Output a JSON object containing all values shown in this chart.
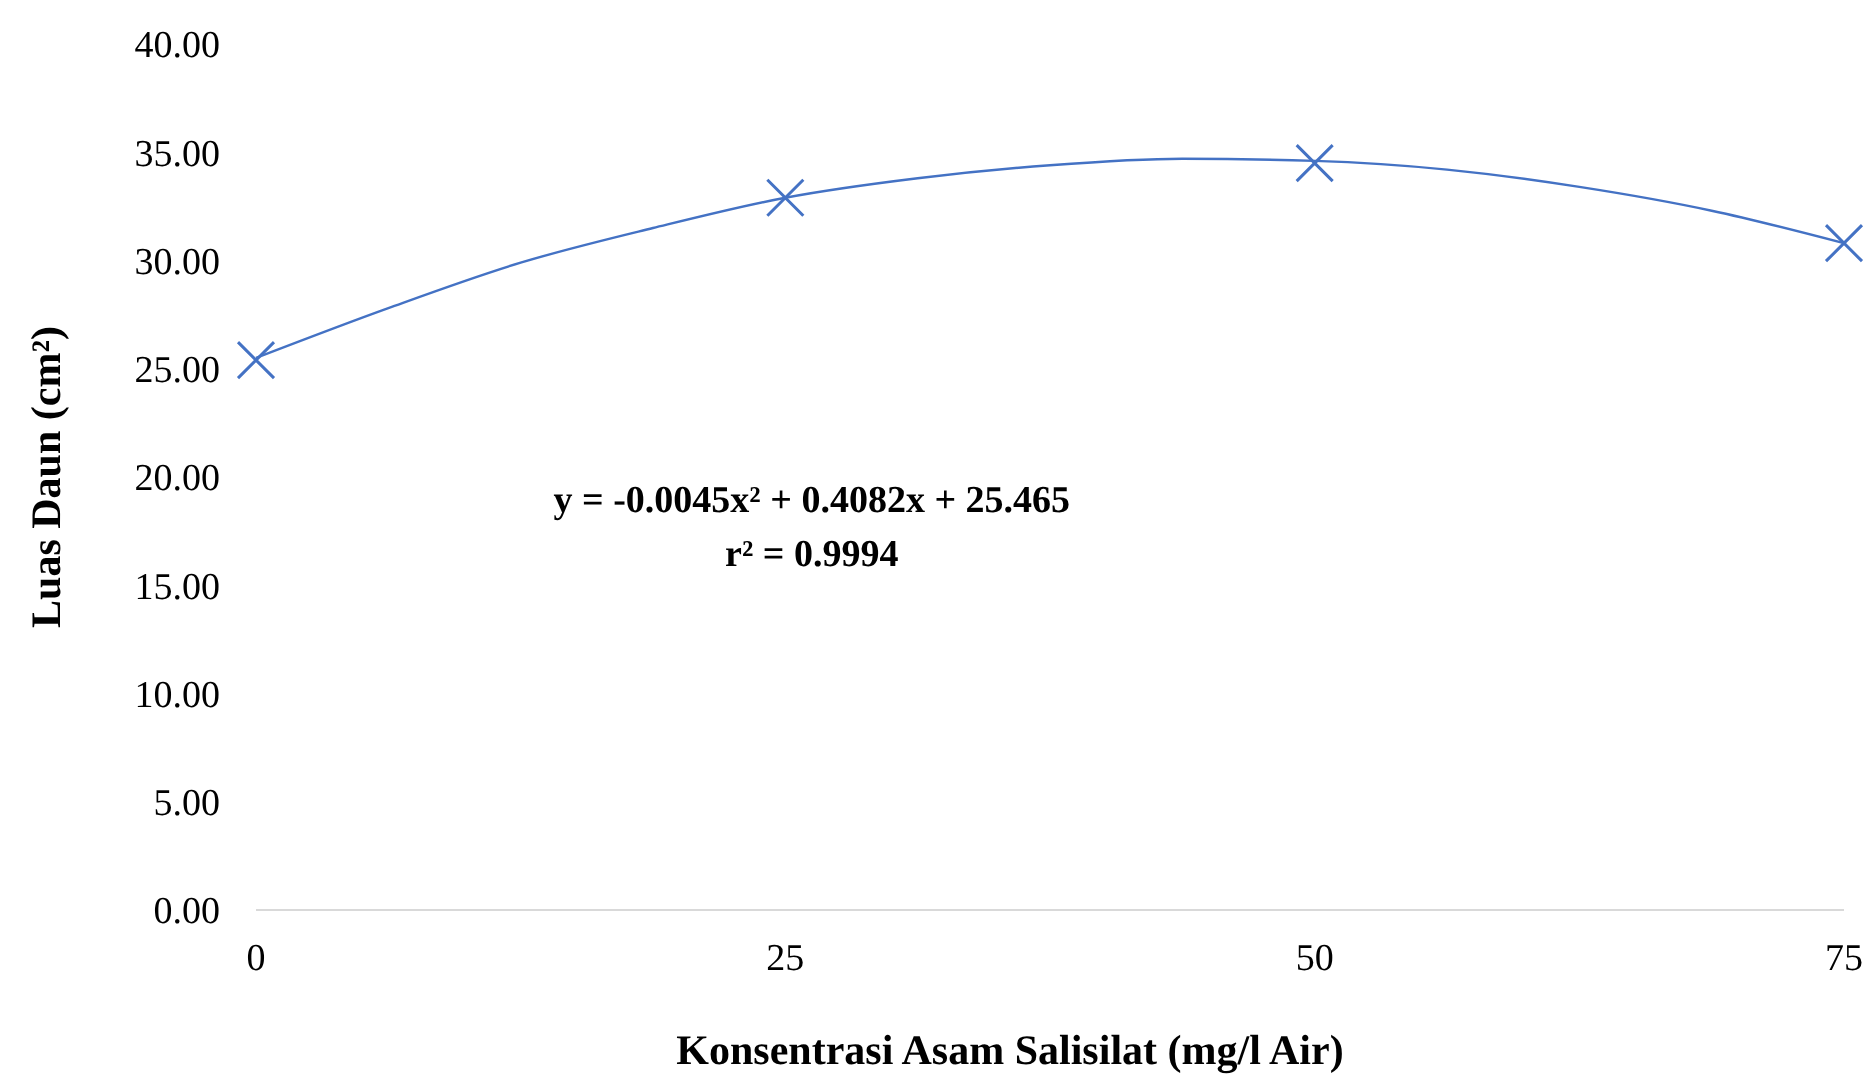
{
  "chart_data": {
    "type": "scatter",
    "xlabel": "Konsentrasi Asam Salisilat (mg/l Air)",
    "ylabel": "Luas Daun (cm²)",
    "xlim": [
      0,
      75
    ],
    "xticks": [
      0,
      25,
      50,
      75
    ],
    "ylim": [
      0,
      40
    ],
    "yticks": [
      {
        "value": 0,
        "label": "0.00"
      },
      {
        "value": 5,
        "label": "5.00"
      },
      {
        "value": 10,
        "label": "10.00"
      },
      {
        "value": 15,
        "label": "15.00"
      },
      {
        "value": 20,
        "label": "20.00"
      },
      {
        "value": 25,
        "label": "25.00"
      },
      {
        "value": 30,
        "label": "30.00"
      },
      {
        "value": 35,
        "label": "35.00"
      },
      {
        "value": 40,
        "label": "40.00"
      }
    ],
    "grid": false,
    "marker": "cross",
    "series": [
      {
        "color": "#4472c4",
        "x": [
          0,
          25,
          50,
          75
        ],
        "values": [
          25.4,
          32.9,
          34.5,
          30.8
        ]
      },
      {
        "type": "line",
        "color": "#4472c4",
        "marker": "none",
        "line_style": "solid",
        "x": [
          0,
          6.25,
          12.5,
          18.75,
          25,
          31.25,
          37.5,
          43.75,
          50,
          56.25,
          62.5,
          68.75,
          75
        ],
        "values": [
          25.5,
          27.8,
          29.9,
          31.5,
          32.9,
          33.8,
          34.4,
          34.7,
          34.6,
          34.2,
          33.4,
          32.3,
          30.8
        ]
      }
    ],
    "annotations": [
      "y = -0.0045x² + 0.4082x + 25.465",
      "r² = 0.9994"
    ]
  }
}
